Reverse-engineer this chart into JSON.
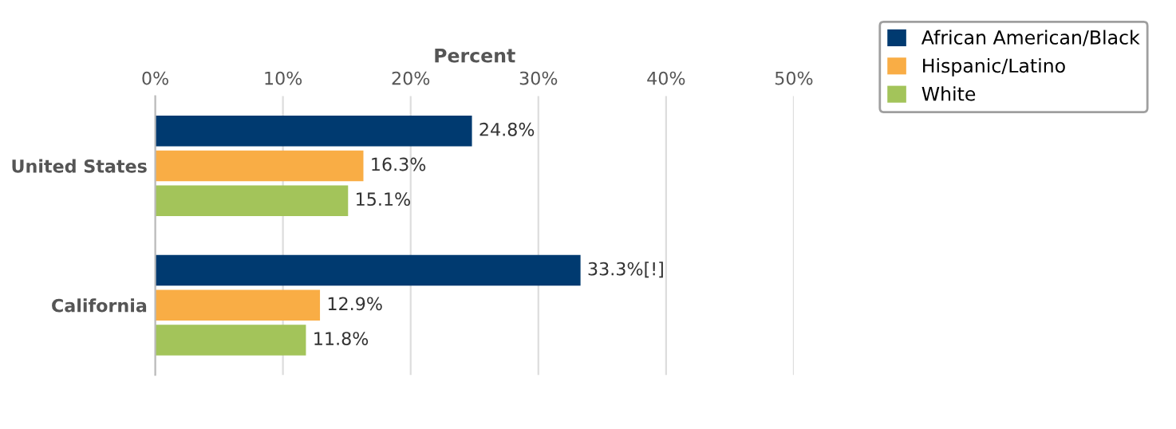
{
  "chart_data": {
    "type": "bar",
    "orientation": "horizontal",
    "xlabel": "Percent",
    "categories": [
      "United States",
      "California"
    ],
    "series": [
      {
        "name": "African American/Black",
        "color": "#003a70",
        "values": [
          24.8,
          33.3
        ],
        "value_labels": [
          "24.8%",
          "33.3%[!]"
        ]
      },
      {
        "name": "Hispanic/Latino",
        "color": "#f9ad45",
        "values": [
          16.3,
          12.9
        ],
        "value_labels": [
          "16.3%",
          "12.9%"
        ]
      },
      {
        "name": "White",
        "color": "#a3c45a",
        "values": [
          15.1,
          11.8
        ],
        "value_labels": [
          "15.1%",
          "11.8%"
        ]
      }
    ],
    "xlim": [
      0,
      50
    ],
    "xticks": [
      {
        "value": 0,
        "label": "0%"
      },
      {
        "value": 10,
        "label": "10%"
      },
      {
        "value": 20,
        "label": "20%"
      },
      {
        "value": 30,
        "label": "30%"
      },
      {
        "value": 40,
        "label": "40%"
      },
      {
        "value": 50,
        "label": "50%"
      }
    ],
    "grid": "x",
    "legend": "top right"
  }
}
